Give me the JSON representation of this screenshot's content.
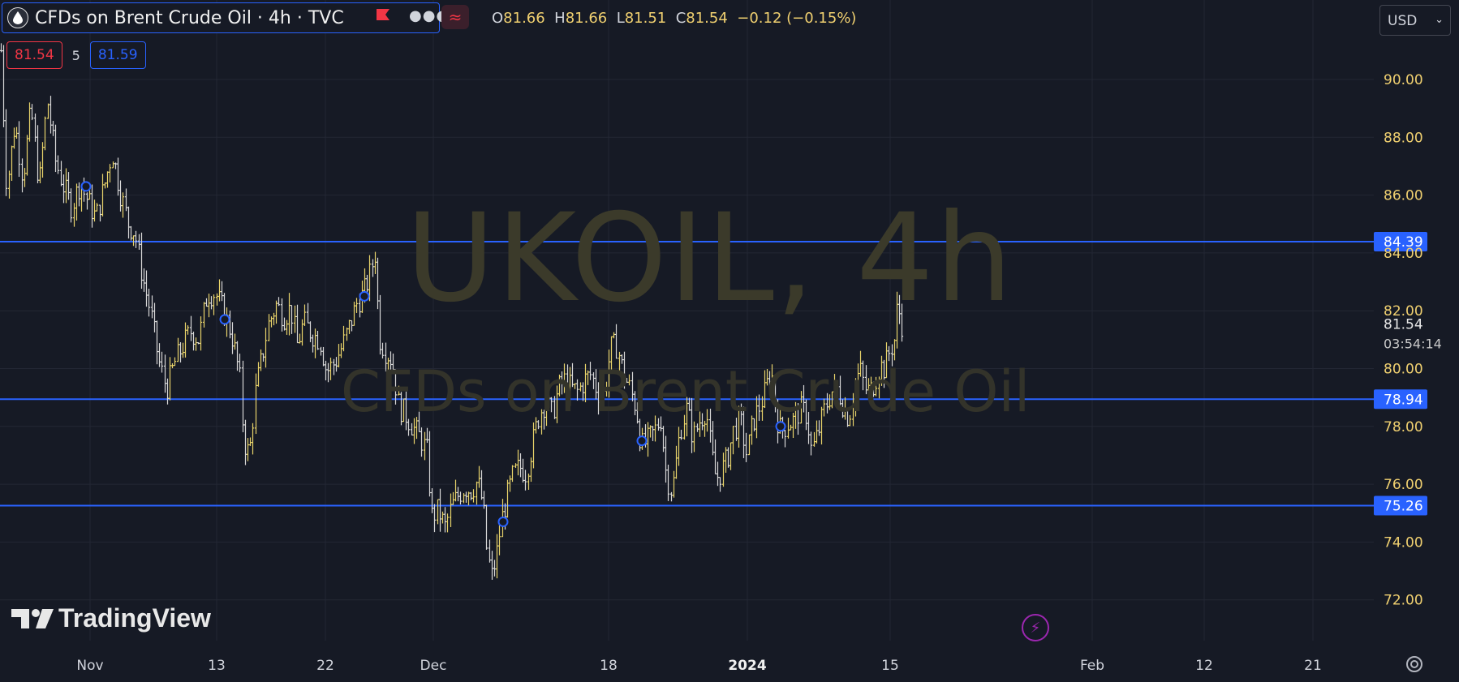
{
  "symbol": {
    "title": "CFDs on Brent Crude Oil · 4h · TVC",
    "icon": "oil-drop-icon",
    "menu_icon": "more-dots-icon",
    "flag_icon": "flag-icon",
    "wave_icon": "wave-icon"
  },
  "ohlc": {
    "o_label": "O",
    "o": "81.66",
    "h_label": "H",
    "h": "81.66",
    "l_label": "L",
    "l": "81.51",
    "c_label": "C",
    "c": "81.54",
    "change": "−0.12 (−0.15%)"
  },
  "quotes": {
    "bid": "81.54",
    "spread": "5",
    "ask": "81.59"
  },
  "currency": "USD",
  "watermark": {
    "main": "UKOIL, 4h",
    "sub": "CFDs on Brent Crude Oil"
  },
  "brand": "TradingView",
  "colors": {
    "background": "#161a25",
    "grid": "#232734",
    "up": "#e8d36a",
    "down": "#d8d8d8",
    "level_line": "#2962ff",
    "axis_text": "#f0d070",
    "marker": "#2962ff"
  },
  "chart_data": {
    "type": "ohlc",
    "title": "CFDs on Brent Crude Oil · 4h · TVC",
    "xlabel": "",
    "ylabel": "",
    "ylim": [
      70.1,
      92.3
    ],
    "y_ticks": [
      72.0,
      74.0,
      76.0,
      78.0,
      80.0,
      82.0,
      84.0,
      86.0,
      88.0,
      90.0
    ],
    "y_tick_labels": [
      "72.00",
      "74.00",
      "76.00",
      "78.00",
      "80.00",
      "82.00",
      "84.00",
      "86.00",
      "88.00",
      "90.00"
    ],
    "x_labels": [
      "Nov",
      "13",
      "22",
      "Dec",
      "18",
      "2024",
      "15",
      "Feb",
      "12",
      "21"
    ],
    "grid": true,
    "last_price": {
      "value": 81.54,
      "label": "81.54",
      "countdown": "03:54:14"
    },
    "horizontal_levels": [
      {
        "value": 84.39,
        "label": "84.39"
      },
      {
        "value": 78.94,
        "label": "78.94"
      },
      {
        "value": 75.26,
        "label": "75.26"
      }
    ],
    "price_path": [
      [
        1,
        91.0
      ],
      [
        8,
        86.2
      ],
      [
        18,
        88.5
      ],
      [
        28,
        86.6
      ],
      [
        38,
        89.0
      ],
      [
        48,
        86.3
      ],
      [
        58,
        89.3
      ],
      [
        68,
        87.2
      ],
      [
        78,
        86.3
      ],
      [
        88,
        85.6
      ],
      [
        98,
        86.4
      ],
      [
        108,
        85.8
      ],
      [
        118,
        85.2
      ],
      [
        128,
        86.3
      ],
      [
        138,
        87.5
      ],
      [
        148,
        86.1
      ],
      [
        158,
        85.0
      ],
      [
        166,
        84.7
      ],
      [
        175,
        83.2
      ],
      [
        185,
        82.0
      ],
      [
        195,
        80.3
      ],
      [
        205,
        79.3
      ],
      [
        215,
        80.2
      ],
      [
        225,
        80.8
      ],
      [
        235,
        81.3
      ],
      [
        245,
        81.0
      ],
      [
        255,
        82.6
      ],
      [
        265,
        82.6
      ],
      [
        275,
        82.0
      ],
      [
        285,
        81.2
      ],
      [
        292,
        80.2
      ],
      [
        296,
        79.5
      ],
      [
        300,
        77.5
      ],
      [
        307,
        77.0
      ],
      [
        315,
        79.3
      ],
      [
        322,
        80.3
      ],
      [
        330,
        81.5
      ],
      [
        340,
        82.2
      ],
      [
        350,
        81.8
      ],
      [
        358,
        82.1
      ],
      [
        366,
        80.8
      ],
      [
        374,
        81.6
      ],
      [
        384,
        81.2
      ],
      [
        394,
        81.0
      ],
      [
        402,
        79.9
      ],
      [
        412,
        80.2
      ],
      [
        422,
        80.8
      ],
      [
        432,
        81.6
      ],
      [
        440,
        82.3
      ],
      [
        448,
        82.6
      ],
      [
        456,
        83.3
      ],
      [
        462,
        84.0
      ],
      [
        467,
        81.1
      ],
      [
        475,
        80.6
      ],
      [
        483,
        80.3
      ],
      [
        491,
        78.7
      ],
      [
        500,
        78.4
      ],
      [
        510,
        77.9
      ],
      [
        518,
        77.6
      ],
      [
        526,
        77.1
      ],
      [
        532,
        74.9
      ],
      [
        540,
        75.1
      ],
      [
        548,
        74.5
      ],
      [
        556,
        75.2
      ],
      [
        564,
        75.6
      ],
      [
        572,
        75.9
      ],
      [
        580,
        75.8
      ],
      [
        588,
        76.1
      ],
      [
        595,
        75.3
      ],
      [
        600,
        73.6
      ],
      [
        606,
        72.8
      ],
      [
        612,
        73.6
      ],
      [
        618,
        74.8
      ],
      [
        625,
        75.6
      ],
      [
        632,
        76.3
      ],
      [
        640,
        76.6
      ],
      [
        648,
        76.4
      ],
      [
        656,
        77.4
      ],
      [
        664,
        78.4
      ],
      [
        672,
        78.9
      ],
      [
        680,
        78.4
      ],
      [
        688,
        79.3
      ],
      [
        696,
        79.6
      ],
      [
        704,
        79.3
      ],
      [
        712,
        79.2
      ],
      [
        720,
        79.6
      ],
      [
        728,
        79.8
      ],
      [
        736,
        79.2
      ],
      [
        744,
        79.1
      ],
      [
        752,
        80.7
      ],
      [
        760,
        80.8
      ],
      [
        768,
        79.8
      ],
      [
        776,
        79.3
      ],
      [
        784,
        78.6
      ],
      [
        790,
        77.3
      ],
      [
        798,
        77.5
      ],
      [
        806,
        77.8
      ],
      [
        814,
        78.3
      ],
      [
        820,
        76.5
      ],
      [
        826,
        75.8
      ],
      [
        830,
        76.1
      ],
      [
        838,
        77.9
      ],
      [
        846,
        78.6
      ],
      [
        854,
        77.6
      ],
      [
        862,
        78.2
      ],
      [
        870,
        78.6
      ],
      [
        876,
        77.1
      ],
      [
        882,
        76.2
      ],
      [
        888,
        76.4
      ],
      [
        896,
        76.9
      ],
      [
        904,
        77.9
      ],
      [
        912,
        78.2
      ],
      [
        920,
        77.0
      ],
      [
        928,
        78.2
      ],
      [
        936,
        78.7
      ],
      [
        944,
        79.3
      ],
      [
        950,
        80.1
      ],
      [
        956,
        78.4
      ],
      [
        962,
        77.8
      ],
      [
        970,
        78.1
      ],
      [
        978,
        78.2
      ],
      [
        986,
        78.6
      ],
      [
        994,
        78.4
      ],
      [
        1000,
        77.1
      ],
      [
        1008,
        77.8
      ],
      [
        1016,
        78.6
      ],
      [
        1024,
        79.2
      ],
      [
        1032,
        79.3
      ],
      [
        1040,
        78.6
      ],
      [
        1046,
        78.3
      ],
      [
        1054,
        79.6
      ],
      [
        1060,
        79.9
      ],
      [
        1066,
        79.3
      ],
      [
        1072,
        79.2
      ],
      [
        1078,
        79.6
      ],
      [
        1084,
        80.1
      ],
      [
        1090,
        80.0
      ],
      [
        1096,
        80.6
      ],
      [
        1102,
        81.0
      ],
      [
        1106,
        82.3
      ],
      [
        1110,
        81.6
      ],
      [
        1113,
        81.5
      ]
    ],
    "markers": [
      [
        106,
        86.3
      ],
      [
        277,
        81.7
      ],
      [
        449,
        82.5
      ],
      [
        620,
        74.7
      ],
      [
        791,
        77.5
      ],
      [
        962,
        78.0
      ]
    ]
  }
}
